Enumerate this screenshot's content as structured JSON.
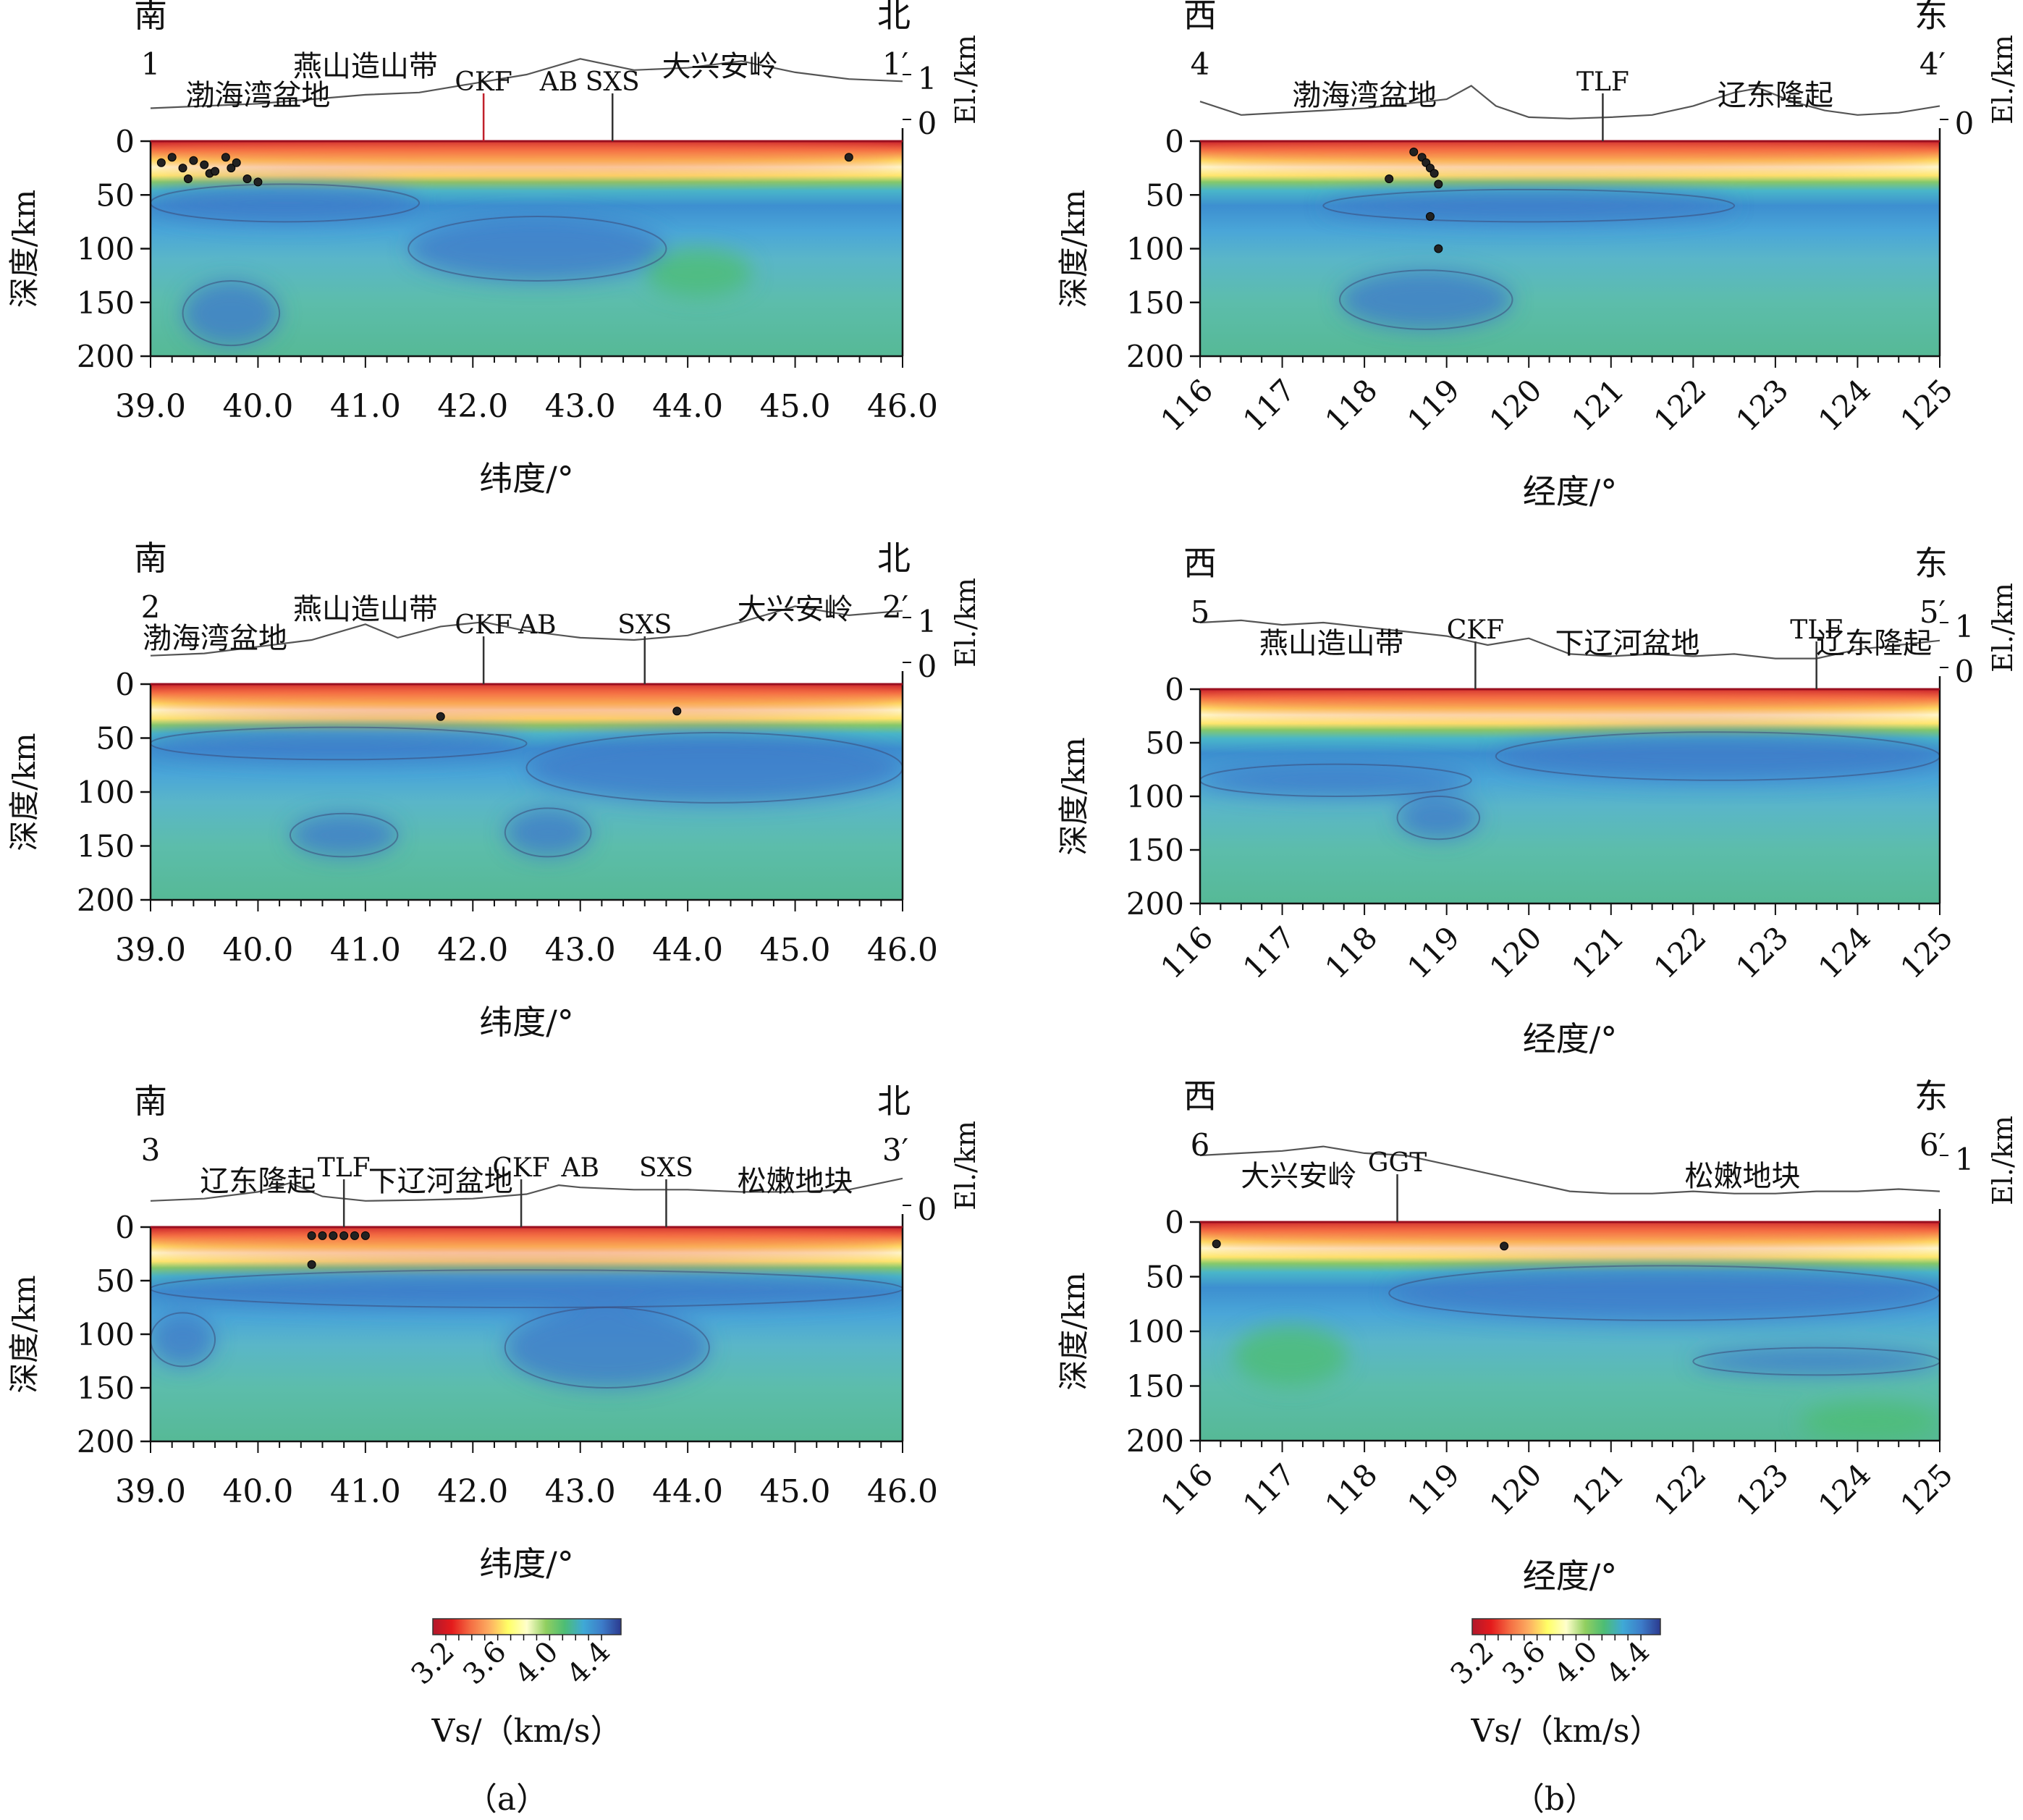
{
  "figure": {
    "column_labels": [
      "（a）",
      "（b）"
    ]
  },
  "chart_data": [
    {
      "type": "heatmap",
      "profile": "1-1′",
      "start_label": "1",
      "end_label": "1′",
      "left_direction": "南",
      "right_direction": "北",
      "xlabel": "纬度/°",
      "ylabel": "深度/km",
      "elevation_label": "El./km",
      "x_ticks": [
        "39.0",
        "40.0",
        "41.0",
        "42.0",
        "43.0",
        "44.0",
        "45.0",
        "46.0"
      ],
      "xlim": [
        39.0,
        46.0
      ],
      "y_ticks": [
        "0",
        "50",
        "100",
        "150",
        "200"
      ],
      "ylim": [
        0,
        200
      ],
      "elev_ticks": [
        "1",
        "0"
      ],
      "annotations": [
        {
          "text": "渤海湾盆地",
          "x": 40.0
        },
        {
          "text": "燕山造山带",
          "x": 41.0
        },
        {
          "text": "CKF",
          "x": 42.1,
          "fault": true,
          "fault_color": "#c0202b"
        },
        {
          "text": "AB",
          "x": 42.8
        },
        {
          "text": "SXS",
          "x": 43.3,
          "fault": true
        },
        {
          "text": "大兴安岭",
          "x": 44.3
        }
      ],
      "topography": [
        [
          39.0,
          0.25
        ],
        [
          39.5,
          0.3
        ],
        [
          40.0,
          0.35
        ],
        [
          40.5,
          0.45
        ],
        [
          41.0,
          0.55
        ],
        [
          41.5,
          0.6
        ],
        [
          42.0,
          0.8
        ],
        [
          42.5,
          1.0
        ],
        [
          43.0,
          1.35
        ],
        [
          43.5,
          1.1
        ],
        [
          44.0,
          1.15
        ],
        [
          44.5,
          1.3
        ],
        [
          45.0,
          1.05
        ],
        [
          45.5,
          0.9
        ],
        [
          46.0,
          0.85
        ]
      ],
      "events": [
        [
          39.1,
          20
        ],
        [
          39.2,
          15
        ],
        [
          39.3,
          25
        ],
        [
          39.35,
          35
        ],
        [
          39.4,
          18
        ],
        [
          39.5,
          22
        ],
        [
          39.55,
          30
        ],
        [
          39.6,
          28
        ],
        [
          39.7,
          15
        ],
        [
          39.75,
          25
        ],
        [
          39.8,
          20
        ],
        [
          39.9,
          35
        ],
        [
          40.0,
          38
        ],
        [
          45.5,
          15
        ]
      ],
      "anomalies": [
        {
          "type": "low",
          "x": [
            39.0,
            46.0
          ],
          "depth": [
            0,
            30
          ],
          "value": 3.4
        },
        {
          "type": "high",
          "x": [
            39.0,
            41.5
          ],
          "depth": [
            40,
            75
          ],
          "value": 4.45
        },
        {
          "type": "high",
          "x": [
            41.4,
            43.8
          ],
          "depth": [
            70,
            130
          ],
          "value": 4.45
        },
        {
          "type": "high",
          "x": [
            39.3,
            40.2
          ],
          "depth": [
            130,
            190
          ],
          "value": 4.4
        },
        {
          "type": "mid",
          "x": [
            43.6,
            44.6
          ],
          "depth": [
            100,
            145
          ],
          "value": 4.05
        }
      ]
    },
    {
      "type": "heatmap",
      "profile": "4-4′",
      "start_label": "4",
      "end_label": "4′",
      "left_direction": "西",
      "right_direction": "东",
      "xlabel": "经度/°",
      "ylabel": "深度/km",
      "elevation_label": "El./km",
      "x_ticks": [
        "116",
        "117",
        "118",
        "119",
        "120",
        "121",
        "122",
        "123",
        "124",
        "125"
      ],
      "xlim": [
        116,
        125
      ],
      "y_ticks": [
        "0",
        "50",
        "100",
        "150",
        "200"
      ],
      "ylim": [
        0,
        200
      ],
      "elev_ticks": [
        "0"
      ],
      "annotations": [
        {
          "text": "渤海湾盆地",
          "x": 118.0
        },
        {
          "text": "TLF",
          "x": 120.9,
          "fault": true
        },
        {
          "text": "辽东隆起",
          "x": 123.0
        }
      ],
      "topography": [
        [
          116,
          0.4
        ],
        [
          116.5,
          0.1
        ],
        [
          117,
          0.15
        ],
        [
          117.5,
          0.2
        ],
        [
          118,
          0.25
        ],
        [
          118.5,
          0.35
        ],
        [
          119,
          0.45
        ],
        [
          119.3,
          0.75
        ],
        [
          119.6,
          0.3
        ],
        [
          120,
          0.05
        ],
        [
          120.5,
          0.02
        ],
        [
          121,
          0.05
        ],
        [
          121.5,
          0.1
        ],
        [
          122,
          0.3
        ],
        [
          122.5,
          0.6
        ],
        [
          122.8,
          0.7
        ],
        [
          123.2,
          0.4
        ],
        [
          123.6,
          0.2
        ],
        [
          124,
          0.1
        ],
        [
          124.5,
          0.15
        ],
        [
          125,
          0.3
        ]
      ],
      "events": [
        [
          118.6,
          10
        ],
        [
          118.7,
          15
        ],
        [
          118.75,
          20
        ],
        [
          118.8,
          25
        ],
        [
          118.85,
          30
        ],
        [
          118.9,
          40
        ],
        [
          118.3,
          35
        ],
        [
          118.8,
          70
        ],
        [
          118.9,
          100
        ]
      ],
      "anomalies": [
        {
          "type": "low",
          "x": [
            116,
            125
          ],
          "depth": [
            0,
            25
          ],
          "value": 3.4
        },
        {
          "type": "high",
          "x": [
            117.5,
            122.5
          ],
          "depth": [
            45,
            75
          ],
          "value": 4.45
        },
        {
          "type": "high",
          "x": [
            117.7,
            119.8
          ],
          "depth": [
            120,
            175
          ],
          "value": 4.4
        }
      ]
    },
    {
      "type": "heatmap",
      "profile": "2-2′",
      "start_label": "2",
      "end_label": "2′",
      "left_direction": "南",
      "right_direction": "北",
      "xlabel": "纬度/°",
      "ylabel": "深度/km",
      "elevation_label": "El./km",
      "x_ticks": [
        "39.0",
        "40.0",
        "41.0",
        "42.0",
        "43.0",
        "44.0",
        "45.0",
        "46.0"
      ],
      "xlim": [
        39.0,
        46.0
      ],
      "y_ticks": [
        "0",
        "50",
        "100",
        "150",
        "200"
      ],
      "ylim": [
        0,
        200
      ],
      "elev_ticks": [
        "1",
        "0"
      ],
      "annotations": [
        {
          "text": "渤海湾盆地",
          "x": 39.6
        },
        {
          "text": "燕山造山带",
          "x": 41.0
        },
        {
          "text": "CKF",
          "x": 42.1,
          "fault": true
        },
        {
          "text": "AB",
          "x": 42.6
        },
        {
          "text": "SXS",
          "x": 43.6,
          "fault": true
        },
        {
          "text": "大兴安岭",
          "x": 45.0
        }
      ],
      "topography": [
        [
          39.0,
          0.15
        ],
        [
          39.5,
          0.2
        ],
        [
          40.0,
          0.35
        ],
        [
          40.5,
          0.5
        ],
        [
          41.0,
          0.85
        ],
        [
          41.3,
          0.55
        ],
        [
          41.7,
          0.8
        ],
        [
          42.1,
          0.9
        ],
        [
          42.5,
          0.7
        ],
        [
          43.0,
          0.55
        ],
        [
          43.5,
          0.5
        ],
        [
          44.0,
          0.6
        ],
        [
          44.5,
          0.9
        ],
        [
          45.0,
          1.25
        ],
        [
          45.5,
          1.05
        ],
        [
          46.0,
          1.15
        ]
      ],
      "events": [
        [
          41.7,
          30
        ],
        [
          43.9,
          25
        ]
      ],
      "anomalies": [
        {
          "type": "low",
          "x": [
            39.0,
            46.0
          ],
          "depth": [
            0,
            30
          ],
          "value": 3.4
        },
        {
          "type": "high",
          "x": [
            39.0,
            42.5
          ],
          "depth": [
            40,
            70
          ],
          "value": 4.45
        },
        {
          "type": "high",
          "x": [
            42.5,
            46.0
          ],
          "depth": [
            45,
            110
          ],
          "value": 4.45
        },
        {
          "type": "high",
          "x": [
            40.3,
            41.3
          ],
          "depth": [
            120,
            160
          ],
          "value": 4.4
        },
        {
          "type": "high",
          "x": [
            42.3,
            43.1
          ],
          "depth": [
            115,
            160
          ],
          "value": 4.4
        }
      ]
    },
    {
      "type": "heatmap",
      "profile": "5-5′",
      "start_label": "5",
      "end_label": "5′",
      "left_direction": "西",
      "right_direction": "东",
      "xlabel": "经度/°",
      "ylabel": "深度/km",
      "elevation_label": "El./km",
      "x_ticks": [
        "116",
        "117",
        "118",
        "119",
        "120",
        "121",
        "122",
        "123",
        "124",
        "125"
      ],
      "xlim": [
        116,
        125
      ],
      "y_ticks": [
        "0",
        "50",
        "100",
        "150",
        "200"
      ],
      "ylim": [
        0,
        200
      ],
      "elev_ticks": [
        "1",
        "0"
      ],
      "annotations": [
        {
          "text": "燕山造山带",
          "x": 117.6
        },
        {
          "text": "CKF",
          "x": 119.35,
          "fault": true
        },
        {
          "text": "下辽河盆地",
          "x": 121.2
        },
        {
          "text": "TLF",
          "x": 123.5,
          "fault": true
        },
        {
          "text": "辽东隆起",
          "x": 124.2
        }
      ],
      "topography": [
        [
          116,
          1.0
        ],
        [
          116.5,
          1.05
        ],
        [
          117,
          0.95
        ],
        [
          117.5,
          1.0
        ],
        [
          118,
          0.9
        ],
        [
          118.5,
          0.8
        ],
        [
          119,
          0.7
        ],
        [
          119.5,
          0.5
        ],
        [
          120,
          0.65
        ],
        [
          120.5,
          0.3
        ],
        [
          121,
          0.25
        ],
        [
          121.5,
          0.3
        ],
        [
          122,
          0.25
        ],
        [
          122.5,
          0.3
        ],
        [
          123,
          0.2
        ],
        [
          123.5,
          0.2
        ],
        [
          124,
          0.4
        ],
        [
          124.5,
          0.5
        ],
        [
          125,
          0.6
        ]
      ],
      "events": [],
      "anomalies": [
        {
          "type": "low",
          "x": [
            116,
            125
          ],
          "depth": [
            0,
            25
          ],
          "value": 3.4
        },
        {
          "type": "high",
          "x": [
            116,
            119.3
          ],
          "depth": [
            70,
            100
          ],
          "value": 4.45
        },
        {
          "type": "high",
          "x": [
            118.4,
            119.4
          ],
          "depth": [
            100,
            140
          ],
          "value": 4.4
        },
        {
          "type": "high",
          "x": [
            119.6,
            125
          ],
          "depth": [
            40,
            85
          ],
          "value": 4.45
        }
      ]
    },
    {
      "type": "heatmap",
      "profile": "3-3′",
      "start_label": "3",
      "end_label": "3′",
      "left_direction": "南",
      "right_direction": "北",
      "xlabel": "纬度/°",
      "ylabel": "深度/km",
      "elevation_label": "El./km",
      "x_ticks": [
        "39.0",
        "40.0",
        "41.0",
        "42.0",
        "43.0",
        "44.0",
        "45.0",
        "46.0"
      ],
      "xlim": [
        39.0,
        46.0
      ],
      "y_ticks": [
        "0",
        "50",
        "100",
        "150",
        "200"
      ],
      "ylim": [
        0,
        200
      ],
      "elev_ticks": [
        "0"
      ],
      "annotations": [
        {
          "text": "辽东隆起",
          "x": 40.0
        },
        {
          "text": "TLF",
          "x": 40.8,
          "fault": true
        },
        {
          "text": "下辽河盆地",
          "x": 41.7
        },
        {
          "text": "CKF",
          "x": 42.45,
          "fault": true
        },
        {
          "text": "AB",
          "x": 43.0
        },
        {
          "text": "SXS",
          "x": 43.8,
          "fault": true
        },
        {
          "text": "松嫩地块",
          "x": 45.0
        }
      ],
      "topography": [
        [
          39.0,
          0.1
        ],
        [
          39.5,
          0.15
        ],
        [
          40.0,
          0.3
        ],
        [
          40.3,
          0.5
        ],
        [
          40.6,
          0.2
        ],
        [
          41.0,
          0.1
        ],
        [
          41.5,
          0.12
        ],
        [
          42.0,
          0.15
        ],
        [
          42.5,
          0.25
        ],
        [
          42.8,
          0.45
        ],
        [
          43.0,
          0.4
        ],
        [
          43.5,
          0.35
        ],
        [
          44.0,
          0.35
        ],
        [
          44.5,
          0.3
        ],
        [
          45.0,
          0.3
        ],
        [
          45.5,
          0.35
        ],
        [
          46.0,
          0.6
        ]
      ],
      "events": [
        [
          40.5,
          8
        ],
        [
          40.6,
          8
        ],
        [
          40.7,
          8
        ],
        [
          40.8,
          8
        ],
        [
          40.9,
          8
        ],
        [
          41.0,
          8
        ],
        [
          40.5,
          35
        ]
      ],
      "anomalies": [
        {
          "type": "low",
          "x": [
            39.0,
            46.0
          ],
          "depth": [
            0,
            30
          ],
          "value": 3.4
        },
        {
          "type": "high",
          "x": [
            39.0,
            46.0
          ],
          "depth": [
            40,
            75
          ],
          "value": 4.45
        },
        {
          "type": "high",
          "x": [
            42.3,
            44.2
          ],
          "depth": [
            75,
            150
          ],
          "value": 4.4
        },
        {
          "type": "high",
          "x": [
            39.0,
            39.6
          ],
          "depth": [
            80,
            130
          ],
          "value": 4.4
        }
      ]
    },
    {
      "type": "heatmap",
      "profile": "6-6′",
      "start_label": "6",
      "end_label": "6′",
      "left_direction": "西",
      "right_direction": "东",
      "xlabel": "经度/°",
      "ylabel": "深度/km",
      "elevation_label": "El./km",
      "x_ticks": [
        "116",
        "117",
        "118",
        "119",
        "120",
        "121",
        "122",
        "123",
        "124",
        "125"
      ],
      "xlim": [
        116,
        125
      ],
      "y_ticks": [
        "0",
        "50",
        "100",
        "150",
        "200"
      ],
      "ylim": [
        0,
        200
      ],
      "elev_ticks": [
        "1"
      ],
      "annotations": [
        {
          "text": "大兴安岭",
          "x": 117.2
        },
        {
          "text": "GGT",
          "x": 118.4,
          "fault": true
        },
        {
          "text": "松嫩地块",
          "x": 122.6
        }
      ],
      "topography": [
        [
          116,
          1.0
        ],
        [
          116.5,
          1.05
        ],
        [
          117,
          1.1
        ],
        [
          117.5,
          1.2
        ],
        [
          118,
          1.05
        ],
        [
          118.5,
          1.0
        ],
        [
          119,
          0.8
        ],
        [
          119.5,
          0.6
        ],
        [
          120,
          0.4
        ],
        [
          120.5,
          0.2
        ],
        [
          121,
          0.15
        ],
        [
          121.5,
          0.15
        ],
        [
          122,
          0.2
        ],
        [
          122.5,
          0.15
        ],
        [
          123,
          0.15
        ],
        [
          123.5,
          0.2
        ],
        [
          124,
          0.2
        ],
        [
          124.5,
          0.25
        ],
        [
          125,
          0.2
        ]
      ],
      "events": [
        [
          116.2,
          20
        ],
        [
          119.7,
          22
        ]
      ],
      "anomalies": [
        {
          "type": "low",
          "x": [
            116,
            125
          ],
          "depth": [
            0,
            25
          ],
          "value": 3.4
        },
        {
          "type": "high",
          "x": [
            118.3,
            125
          ],
          "depth": [
            40,
            90
          ],
          "value": 4.45
        },
        {
          "type": "high",
          "x": [
            122.0,
            125
          ],
          "depth": [
            115,
            140
          ],
          "value": 4.4
        },
        {
          "type": "mid",
          "x": [
            116.4,
            117.8
          ],
          "depth": [
            95,
            150
          ],
          "value": 4.05
        },
        {
          "type": "mid",
          "x": [
            123.3,
            125
          ],
          "depth": [
            165,
            200
          ],
          "value": 4.05
        }
      ]
    }
  ],
  "colorbar": {
    "ticks": [
      "3.2",
      "3.6",
      "4.0",
      "4.4"
    ],
    "vmin": 3.1,
    "vmax": 4.55,
    "label": "Vs/（km/s）",
    "colors": [
      "#b2182b",
      "#e41a1c",
      "#f46d43",
      "#fdae61",
      "#ffff66",
      "#ffffcc",
      "#91cf60",
      "#4dbd74",
      "#3fa9d6",
      "#3d7cc9",
      "#2b3a8f"
    ]
  }
}
